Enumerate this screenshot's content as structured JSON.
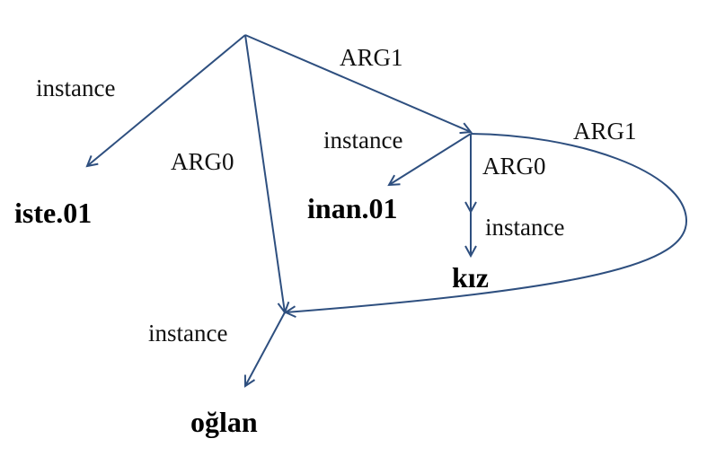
{
  "graph": {
    "concepts": {
      "iste": "iste.01",
      "inan": "inan.01",
      "kiz": "kız",
      "oglan": "oğlan"
    },
    "edges": {
      "root_instance": "instance",
      "root_arg0": "ARG0",
      "root_arg1": "ARG1",
      "inan_instance": "instance",
      "inan_arg0": "ARG0",
      "inan_arg1": "ARG1",
      "kiz_instance": "instance",
      "oglan_instance": "instance"
    },
    "colors": {
      "edge": "#2e4f7f",
      "text": "#111111"
    }
  }
}
